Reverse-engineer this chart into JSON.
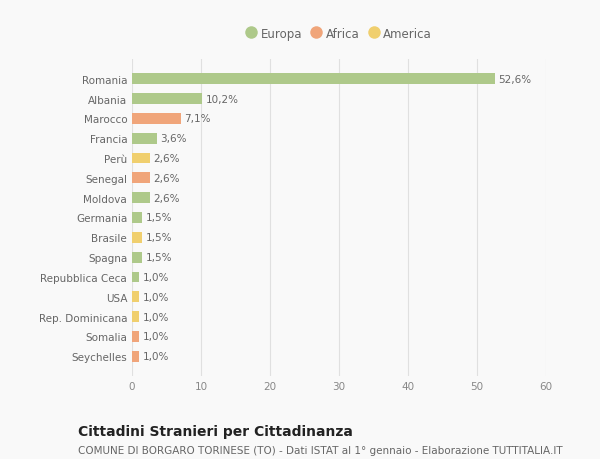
{
  "countries": [
    "Romania",
    "Albania",
    "Marocco",
    "Francia",
    "Perù",
    "Senegal",
    "Moldova",
    "Germania",
    "Brasile",
    "Spagna",
    "Repubblica Ceca",
    "USA",
    "Rep. Dominicana",
    "Somalia",
    "Seychelles"
  ],
  "values": [
    52.6,
    10.2,
    7.1,
    3.6,
    2.6,
    2.6,
    2.6,
    1.5,
    1.5,
    1.5,
    1.0,
    1.0,
    1.0,
    1.0,
    1.0
  ],
  "labels": [
    "52,6%",
    "10,2%",
    "7,1%",
    "3,6%",
    "2,6%",
    "2,6%",
    "2,6%",
    "1,5%",
    "1,5%",
    "1,5%",
    "1,0%",
    "1,0%",
    "1,0%",
    "1,0%",
    "1,0%"
  ],
  "continents": [
    "Europa",
    "Europa",
    "Africa",
    "Europa",
    "America",
    "Africa",
    "Europa",
    "Europa",
    "America",
    "Europa",
    "Europa",
    "America",
    "America",
    "Africa",
    "Africa"
  ],
  "colors": {
    "Europa": "#aec98a",
    "Africa": "#f0a57a",
    "America": "#f0cf6e"
  },
  "title": "Cittadini Stranieri per Cittadinanza",
  "subtitle": "COMUNE DI BORGARO TORINESE (TO) - Dati ISTAT al 1° gennaio - Elaborazione TUTTITALIA.IT",
  "xlim": [
    0,
    60
  ],
  "xticks": [
    0,
    10,
    20,
    30,
    40,
    50,
    60
  ],
  "background_color": "#f9f9f9",
  "bar_height": 0.55,
  "label_fontsize": 7.5,
  "tick_fontsize": 7.5,
  "title_fontsize": 10,
  "subtitle_fontsize": 7.5,
  "legend_fontsize": 8.5
}
